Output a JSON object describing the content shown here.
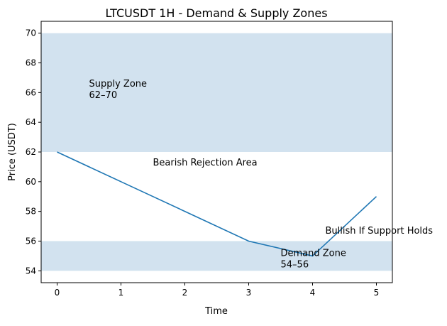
{
  "chart_data": {
    "type": "line",
    "title": "LTCUSDT 1H - Demand & Supply Zones",
    "xlabel": "Time",
    "ylabel": "Price (USDT)",
    "xlim": [
      -0.25,
      5.25
    ],
    "ylim": [
      53.2,
      70.8
    ],
    "x_ticks": [
      0,
      1,
      2,
      3,
      4,
      5
    ],
    "y_ticks": [
      54,
      56,
      58,
      60,
      62,
      64,
      66,
      68,
      70
    ],
    "grid": false,
    "series": [
      {
        "x": [
          0,
          1,
          2,
          3,
          4,
          5
        ],
        "values": [
          62,
          60,
          58,
          56,
          55,
          59
        ],
        "color": "#1f77b4"
      }
    ],
    "zones": [
      {
        "name": "supply",
        "y_from": 62,
        "y_to": 70,
        "color": "#d2e2ef"
      },
      {
        "name": "demand",
        "y_from": 54,
        "y_to": 56,
        "color": "#d2e2ef"
      }
    ],
    "annotations": [
      {
        "lines": [
          "Supply Zone",
          "62–70"
        ],
        "x": 0.5,
        "y": 66.4
      },
      {
        "lines": [
          "Bearish Rejection Area"
        ],
        "x": 1.5,
        "y": 61.1
      },
      {
        "lines": [
          "Bullish If Support Holds"
        ],
        "x": 4.2,
        "y": 56.5
      },
      {
        "lines": [
          "Demand Zone",
          "54–56"
        ],
        "x": 3.5,
        "y": 55.0
      }
    ]
  }
}
